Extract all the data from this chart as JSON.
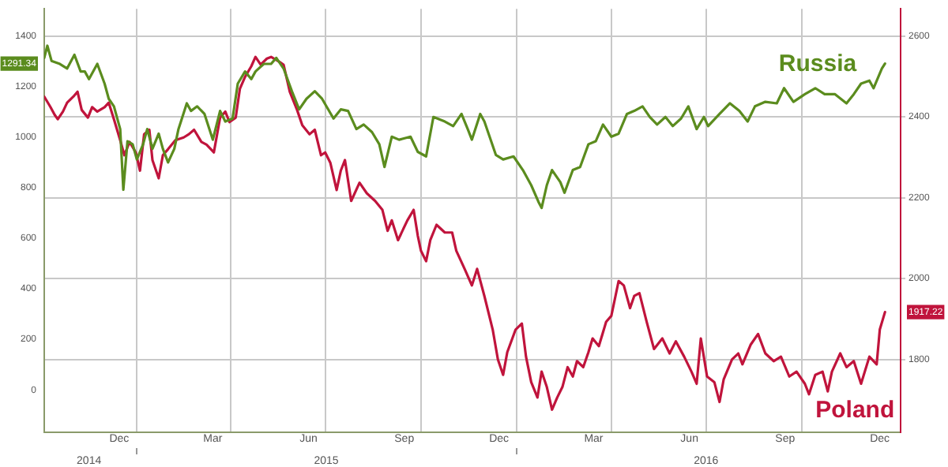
{
  "chart_data": {
    "type": "line",
    "legend": false,
    "grid": true,
    "marker": "none",
    "line_style": "solid",
    "xlim": [
      "2014-10-04",
      "2017-01-04"
    ],
    "xticks": [
      {
        "value": "2014-12-15",
        "label": "Dec"
      },
      {
        "value": "2015-01-01",
        "label": null
      },
      {
        "value": "2015-03-15",
        "label": "Mar"
      },
      {
        "value": "2015-04-01",
        "label": null
      },
      {
        "value": "2015-06-15",
        "label": "Jun"
      },
      {
        "value": "2015-07-01",
        "label": null
      },
      {
        "value": "2015-09-15",
        "label": "Sep"
      },
      {
        "value": "2015-10-01",
        "label": null
      },
      {
        "value": "2015-12-15",
        "label": "Dec"
      },
      {
        "value": "2016-01-01",
        "label": null
      },
      {
        "value": "2016-03-15",
        "label": "Mar"
      },
      {
        "value": "2016-04-01",
        "label": null
      },
      {
        "value": "2016-06-15",
        "label": "Jun"
      },
      {
        "value": "2016-07-01",
        "label": null
      },
      {
        "value": "2016-09-15",
        "label": "Sep"
      },
      {
        "value": "2016-10-01",
        "label": null
      },
      {
        "value": "2016-12-15",
        "label": "Dec"
      }
    ],
    "x2lim": [
      "2014-10-04",
      "2017-01-04"
    ],
    "x2ticks": [
      {
        "value": "2014-11-16",
        "label": "2014"
      },
      {
        "value": "2015-01-01",
        "label": null
      },
      {
        "value": "2015-07-02",
        "label": "2015"
      },
      {
        "value": "2016-01-01",
        "label": null
      },
      {
        "value": "2016-07-01",
        "label": "2016"
      }
    ],
    "ylim": [
      -168,
      1508
    ],
    "yticks": [
      0,
      200,
      400,
      600,
      800,
      1000,
      1200,
      {
        "value": 1291.34,
        "label": "1291.34"
      },
      1400
    ],
    "y2lim": [
      1620,
      2667
    ],
    "y2ticks": [
      1800,
      {
        "value": 1917.22,
        "label": "1917.22"
      },
      2000,
      2200,
      2400,
      2600
    ],
    "series": [
      {
        "name": "Russia",
        "color": "#5b8c1e",
        "axis": "y",
        "x": [
          "2014-10-04",
          "2014-10-07",
          "2014-10-11",
          "2014-10-19",
          "2014-10-26",
          "2014-11-02",
          "2014-11-08",
          "2014-11-12",
          "2014-11-16",
          "2014-11-24",
          "2014-12-01",
          "2014-12-05",
          "2014-12-10",
          "2014-12-16",
          "2014-12-19",
          "2014-12-23",
          "2014-12-28",
          "2015-01-01",
          "2015-01-07",
          "2015-01-11",
          "2015-01-16",
          "2015-01-22",
          "2015-01-26",
          "2015-01-31",
          "2015-02-06",
          "2015-02-10",
          "2015-02-18",
          "2015-02-22",
          "2015-02-28",
          "2015-03-07",
          "2015-03-15",
          "2015-03-22",
          "2015-03-27",
          "2015-04-03",
          "2015-04-08",
          "2015-04-15",
          "2015-04-21",
          "2015-04-25",
          "2015-05-03",
          "2015-05-10",
          "2015-05-15",
          "2015-05-22",
          "2015-05-30",
          "2015-06-06",
          "2015-06-13",
          "2015-06-21",
          "2015-06-28",
          "2015-07-09",
          "2015-07-16",
          "2015-07-23",
          "2015-07-31",
          "2015-08-07",
          "2015-08-15",
          "2015-08-22",
          "2015-08-27",
          "2015-09-03",
          "2015-09-10",
          "2015-09-21",
          "2015-09-28",
          "2015-10-06",
          "2015-10-13",
          "2015-10-24",
          "2015-11-01",
          "2015-11-09",
          "2015-11-15",
          "2015-11-19",
          "2015-11-27",
          "2015-12-01",
          "2015-12-12",
          "2015-12-19",
          "2015-12-29",
          "2016-01-07",
          "2016-01-15",
          "2016-01-22",
          "2016-01-25",
          "2016-01-30",
          "2016-02-04",
          "2016-02-12",
          "2016-02-16",
          "2016-02-24",
          "2016-03-02",
          "2016-03-10",
          "2016-03-17",
          "2016-03-24",
          "2016-04-01",
          "2016-04-08",
          "2016-04-16",
          "2016-04-23",
          "2016-05-01",
          "2016-05-08",
          "2016-05-15",
          "2016-05-23",
          "2016-05-30",
          "2016-06-07",
          "2016-06-14",
          "2016-06-22",
          "2016-06-29",
          "2016-07-03",
          "2016-07-14",
          "2016-07-24",
          "2016-08-02",
          "2016-08-10",
          "2016-08-17",
          "2016-08-27",
          "2016-09-07",
          "2016-09-14",
          "2016-09-23",
          "2016-10-04",
          "2016-10-14",
          "2016-10-23",
          "2016-11-02",
          "2016-11-13",
          "2016-11-20",
          "2016-11-27",
          "2016-12-05",
          "2016-12-09",
          "2016-12-17",
          "2016-12-20"
        ],
        "values": [
          1314,
          1362,
          1302,
          1290,
          1272,
          1326,
          1260,
          1260,
          1230,
          1290,
          1212,
          1152,
          1122,
          1032,
          792,
          984,
          972,
          912,
          972,
          1032,
          954,
          1014,
          954,
          900,
          954,
          1032,
          1134,
          1104,
          1122,
          1092,
          990,
          1104,
          1062,
          1074,
          1212,
          1260,
          1230,
          1260,
          1290,
          1290,
          1314,
          1272,
          1182,
          1110,
          1152,
          1182,
          1152,
          1074,
          1110,
          1104,
          1032,
          1050,
          1020,
          972,
          882,
          1002,
          990,
          1002,
          942,
          924,
          1080,
          1062,
          1044,
          1092,
          1032,
          990,
          1092,
          1062,
          930,
          912,
          924,
          870,
          810,
          744,
          720,
          810,
          870,
          822,
          780,
          870,
          882,
          972,
          984,
          1050,
          1002,
          1014,
          1092,
          1104,
          1122,
          1080,
          1050,
          1080,
          1044,
          1074,
          1122,
          1032,
          1080,
          1044,
          1092,
          1134,
          1104,
          1062,
          1122,
          1140,
          1134,
          1194,
          1140,
          1170,
          1194,
          1170,
          1170,
          1134,
          1170,
          1212,
          1224,
          1194,
          1272,
          1291.34
        ]
      },
      {
        "name": "Poland",
        "color": "#c0143c",
        "axis": "y2",
        "x": [
          "2014-10-04",
          "2014-10-10",
          "2014-10-14",
          "2014-10-17",
          "2014-10-22",
          "2014-10-26",
          "2014-11-01",
          "2014-11-05",
          "2014-11-09",
          "2014-11-15",
          "2014-11-19",
          "2014-11-24",
          "2014-12-01",
          "2014-12-05",
          "2014-12-10",
          "2014-12-16",
          "2014-12-20",
          "2014-12-25",
          "2014-12-31",
          "2015-01-04",
          "2015-01-08",
          "2015-01-13",
          "2015-01-16",
          "2015-01-22",
          "2015-01-26",
          "2015-01-31",
          "2015-02-07",
          "2015-02-15",
          "2015-02-20",
          "2015-02-25",
          "2015-03-04",
          "2015-03-09",
          "2015-03-16",
          "2015-03-22",
          "2015-03-27",
          "2015-03-31",
          "2015-04-06",
          "2015-04-10",
          "2015-04-15",
          "2015-04-21",
          "2015-04-25",
          "2015-04-30",
          "2015-05-06",
          "2015-05-10",
          "2015-05-18",
          "2015-05-22",
          "2015-05-28",
          "2015-06-04",
          "2015-06-09",
          "2015-06-16",
          "2015-06-21",
          "2015-06-27",
          "2015-07-01",
          "2015-07-06",
          "2015-07-12",
          "2015-07-16",
          "2015-07-20",
          "2015-07-26",
          "2015-08-03",
          "2015-08-10",
          "2015-08-18",
          "2015-08-25",
          "2015-08-30",
          "2015-09-03",
          "2015-09-09",
          "2015-09-18",
          "2015-09-24",
          "2015-09-28",
          "2015-10-01",
          "2015-10-06",
          "2015-10-10",
          "2015-10-16",
          "2015-10-24",
          "2015-10-31",
          "2015-11-04",
          "2015-11-12",
          "2015-11-19",
          "2015-11-24",
          "2015-12-01",
          "2015-12-09",
          "2015-12-14",
          "2015-12-19",
          "2015-12-23",
          "2015-12-31",
          "2016-01-06",
          "2016-01-10",
          "2016-01-15",
          "2016-01-21",
          "2016-01-25",
          "2016-01-30",
          "2016-02-04",
          "2016-02-09",
          "2016-02-14",
          "2016-02-19",
          "2016-02-24",
          "2016-02-28",
          "2016-03-05",
          "2016-03-10",
          "2016-03-14",
          "2016-03-20",
          "2016-03-27",
          "2016-04-01",
          "2016-04-05",
          "2016-04-08",
          "2016-04-13",
          "2016-04-19",
          "2016-04-23",
          "2016-04-28",
          "2016-05-05",
          "2016-05-12",
          "2016-05-20",
          "2016-05-27",
          "2016-06-02",
          "2016-06-10",
          "2016-06-17",
          "2016-06-22",
          "2016-06-26",
          "2016-07-02",
          "2016-07-09",
          "2016-07-14",
          "2016-07-18",
          "2016-07-26",
          "2016-08-01",
          "2016-08-05",
          "2016-08-13",
          "2016-08-20",
          "2016-08-27",
          "2016-09-04",
          "2016-09-11",
          "2016-09-19",
          "2016-09-26",
          "2016-10-04",
          "2016-10-08",
          "2016-10-14",
          "2016-10-21",
          "2016-10-26",
          "2016-10-30",
          "2016-11-07",
          "2016-11-13",
          "2016-11-20",
          "2016-11-27",
          "2016-12-05",
          "2016-12-12",
          "2016-12-15",
          "2016-12-20"
        ],
        "values": [
          2450,
          2424,
          2405,
          2394,
          2413,
          2435,
          2450,
          2462,
          2417,
          2398,
          2424,
          2413,
          2424,
          2435,
          2394,
          2342,
          2305,
          2338,
          2312,
          2267,
          2357,
          2368,
          2293,
          2248,
          2305,
          2320,
          2342,
          2349,
          2357,
          2368,
          2338,
          2331,
          2312,
          2398,
          2413,
          2387,
          2398,
          2469,
          2499,
          2525,
          2548,
          2529,
          2544,
          2548,
          2536,
          2529,
          2462,
          2417,
          2379,
          2357,
          2368,
          2305,
          2312,
          2286,
          2219,
          2267,
          2293,
          2192,
          2237,
          2211,
          2192,
          2170,
          2118,
          2144,
          2095,
          2144,
          2170,
          2106,
          2069,
          2043,
          2095,
          2133,
          2114,
          2114,
          2069,
          2024,
          1983,
          2024,
          1957,
          1874,
          1800,
          1762,
          1818,
          1874,
          1889,
          1807,
          1744,
          1706,
          1770,
          1732,
          1676,
          1706,
          1732,
          1781,
          1758,
          1796,
          1781,
          1818,
          1852,
          1833,
          1893,
          1908,
          1957,
          1994,
          1983,
          1927,
          1957,
          1964,
          1893,
          1826,
          1852,
          1815,
          1845,
          1807,
          1770,
          1740,
          1852,
          1758,
          1744,
          1695,
          1751,
          1800,
          1815,
          1788,
          1837,
          1863,
          1815,
          1796,
          1807,
          1758,
          1770,
          1740,
          1714,
          1762,
          1770,
          1721,
          1770,
          1815,
          1781,
          1796,
          1740,
          1807,
          1788,
          1874,
          1917.22
        ]
      }
    ]
  }
}
